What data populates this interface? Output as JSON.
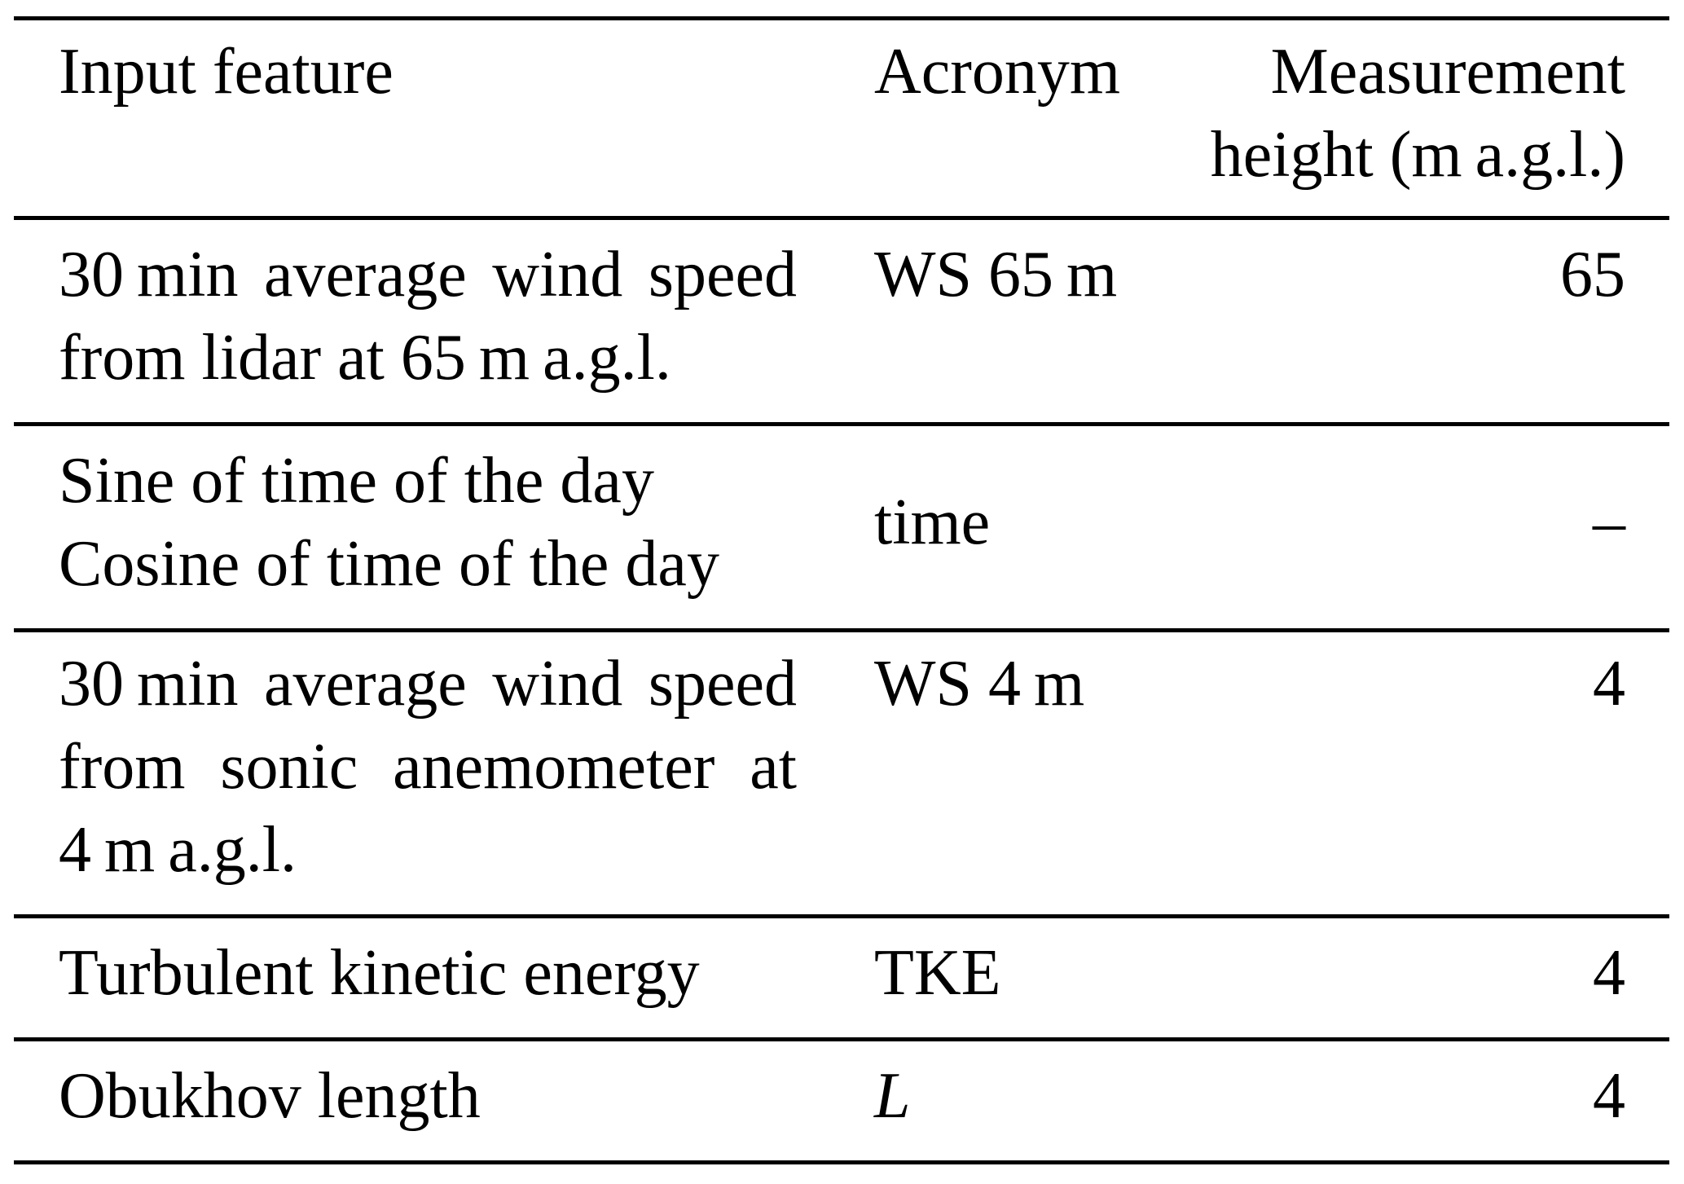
{
  "page": {
    "background_color": "#ffffff",
    "text_color": "#000000",
    "rule_color": "#000000"
  },
  "table": {
    "header": {
      "input_feature": "Input feature",
      "acronym": "Acronym",
      "measurement_line1": "Measurement",
      "measurement_line2": "height (m a.g.l.)"
    },
    "rows": [
      {
        "feature_lines": [
          "30 min average wind speed",
          "from lidar at 65 m a.g.l."
        ],
        "acronym": "WS 65 m",
        "height": "65"
      },
      {
        "feature_lines": [
          "Sine of time of the day",
          "Cosine of time of the day"
        ],
        "acronym": "time",
        "height": "–"
      },
      {
        "feature_lines": [
          "30 min average wind speed",
          "from sonic anemometer at",
          "4 m a.g.l."
        ],
        "acronym": "WS 4 m",
        "height": "4"
      },
      {
        "feature_lines": [
          "Turbulent kinetic energy"
        ],
        "acronym": "TKE",
        "height": "4"
      },
      {
        "feature_lines": [
          "Obukhov length"
        ],
        "acronym": "L",
        "height": "4"
      }
    ]
  }
}
